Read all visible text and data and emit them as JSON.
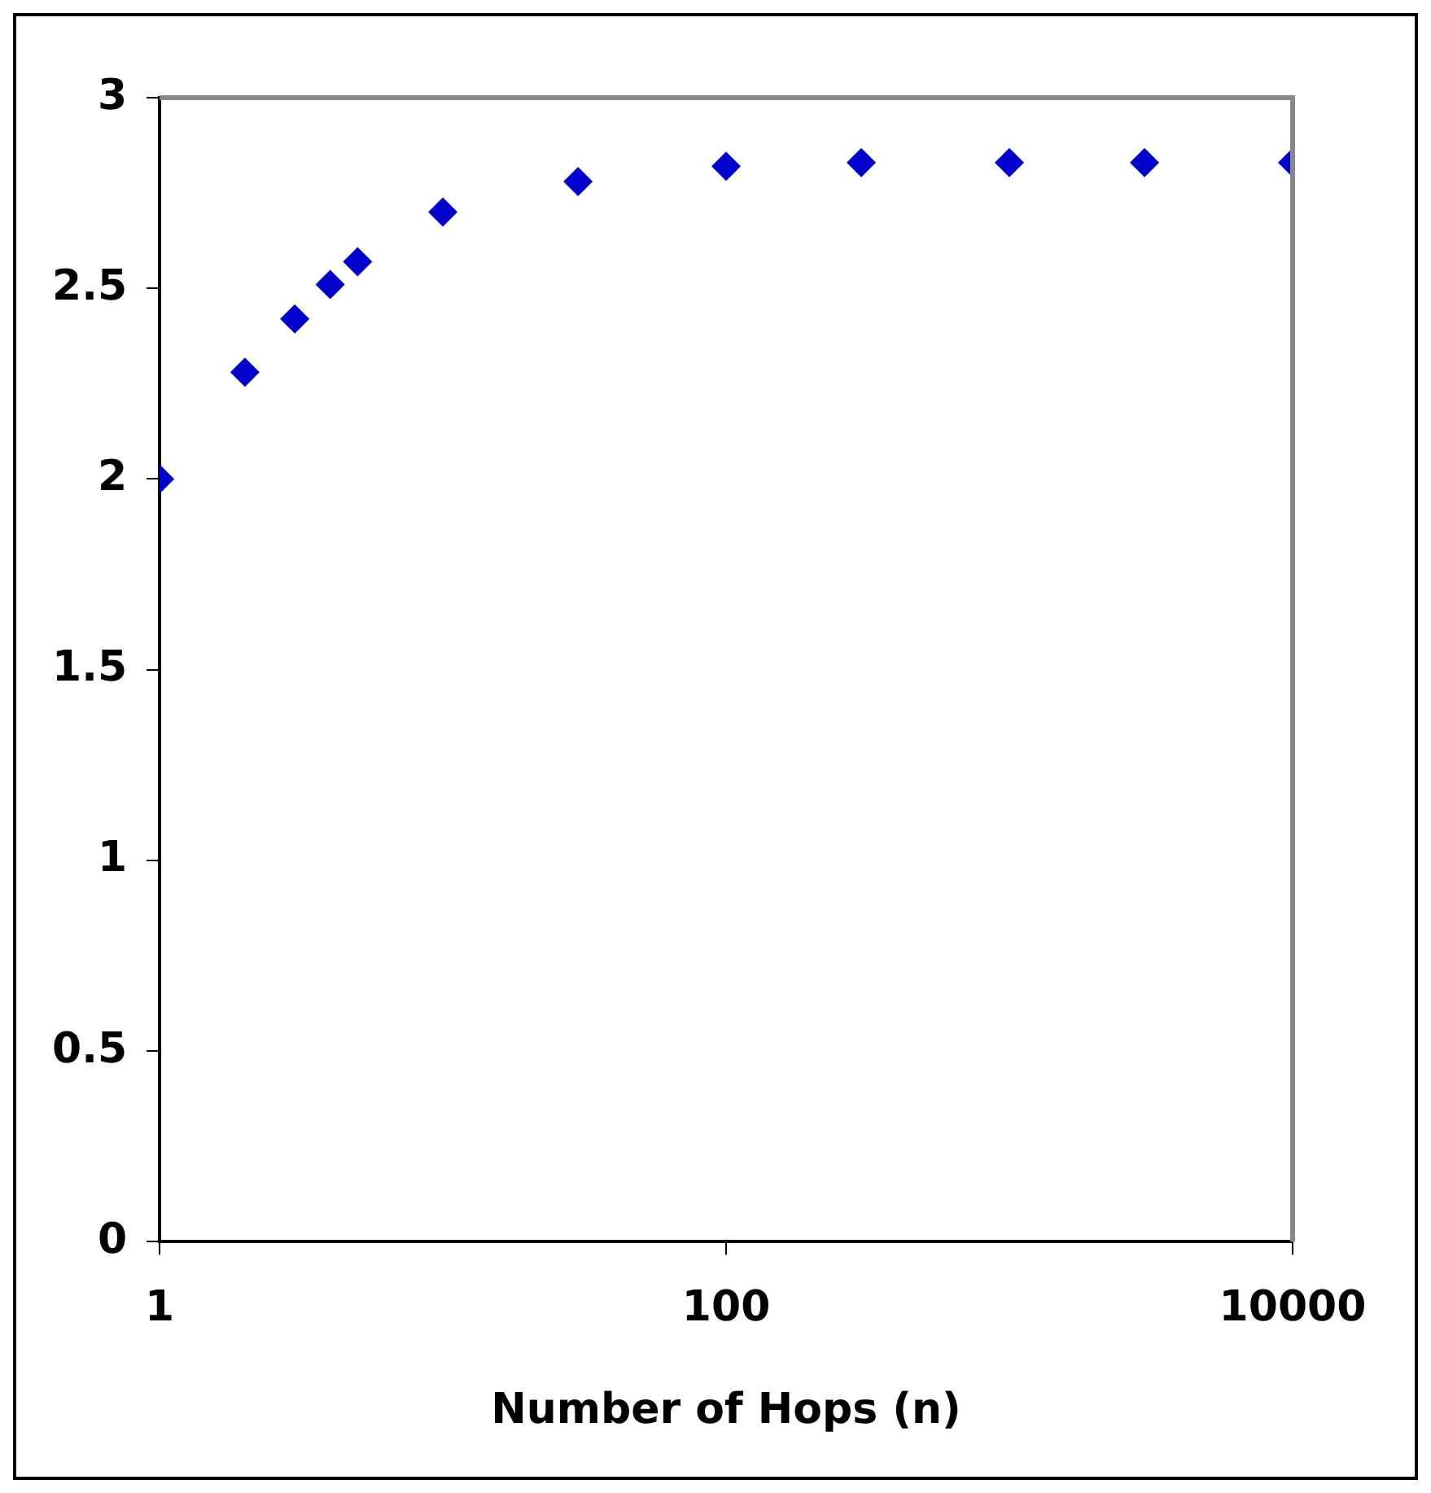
{
  "chart_data": {
    "type": "scatter",
    "xlabel": "Number of Hops (n)",
    "log": "x",
    "x": [
      1,
      2,
      3,
      4,
      5,
      10,
      30,
      100,
      300,
      1000,
      3000,
      10000
    ],
    "series": [
      {
        "color": "#0000cc",
        "values": [
          2.0,
          2.28,
          2.42,
          2.51,
          2.57,
          2.7,
          2.78,
          2.82,
          2.83,
          2.83,
          2.83,
          2.83
        ]
      }
    ],
    "xlim": [
      1,
      10000
    ],
    "xticks": [
      1,
      100,
      10000
    ],
    "ylim": [
      0,
      3
    ],
    "yticks": [
      0,
      0.5,
      1,
      1.5,
      2,
      2.5,
      3
    ],
    "grid": false,
    "legend": false,
    "marker": "diamond"
  }
}
